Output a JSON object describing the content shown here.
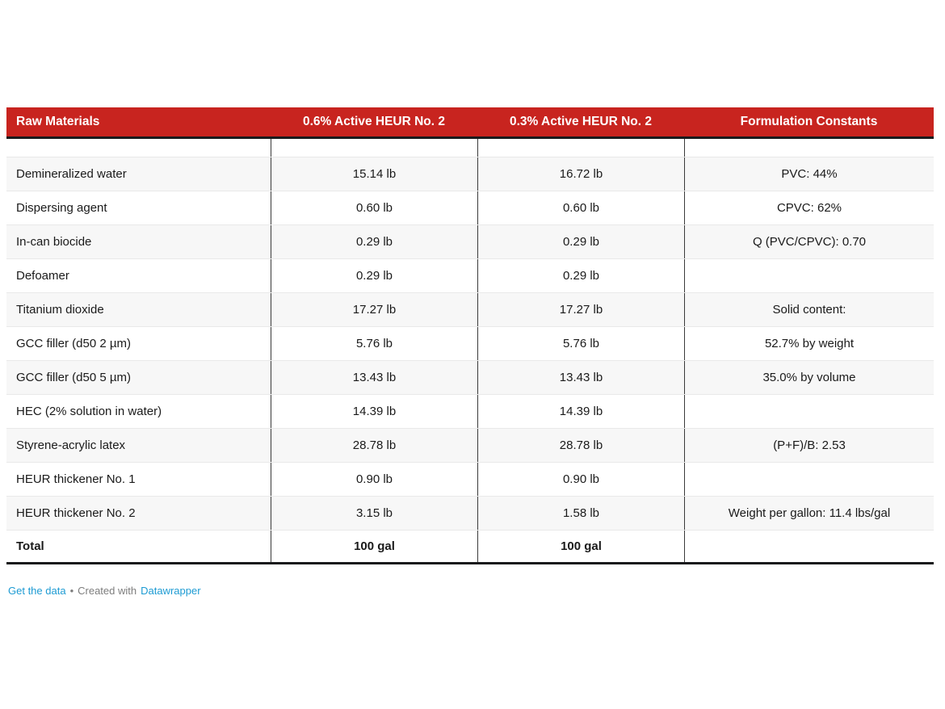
{
  "chart_data": {
    "type": "table",
    "title": "",
    "columns": [
      "Raw Materials",
      "0.6% Active HEUR No. 2",
      "0.3% Active HEUR No. 2",
      "Formulation Constants"
    ],
    "rows": [
      [
        "Demineralized water",
        "15.14 lb",
        "16.72 lb",
        "PVC: 44%"
      ],
      [
        "Dispersing agent",
        "0.60 lb",
        "0.60 lb",
        "CPVC: 62%"
      ],
      [
        "In-can biocide",
        "0.29 lb",
        "0.29 lb",
        "Q (PVC/CPVC): 0.70"
      ],
      [
        "Defoamer",
        "0.29 lb",
        "0.29 lb",
        ""
      ],
      [
        "Titanium dioxide",
        "17.27 lb",
        "17.27 lb",
        "Solid content:"
      ],
      [
        "GCC filler (d50 2 µm)",
        "5.76 lb",
        "5.76 lb",
        "52.7% by weight"
      ],
      [
        "GCC filler (d50 5 µm)",
        "13.43 lb",
        "13.43 lb",
        "35.0% by volume"
      ],
      [
        "HEC (2% solution in water)",
        "14.39 lb",
        "14.39 lb",
        ""
      ],
      [
        "Styrene-acrylic latex",
        "28.78 lb",
        "28.78 lb",
        "(P+F)/B: 2.53"
      ],
      [
        "HEUR thickener No. 1",
        "0.90 lb",
        "0.90 lb",
        ""
      ],
      [
        "HEUR thickener No. 2",
        "3.15 lb",
        "1.58 lb",
        "Weight per gallon: 11.4 lbs/gal"
      ],
      [
        "Total",
        "100 gal",
        "100 gal",
        ""
      ]
    ],
    "layout_hints": {
      "header_style": "red band, white bold text",
      "striped_rows": "odd data rows shaded",
      "column_alignment": [
        "left",
        "center",
        "center",
        "center"
      ]
    }
  },
  "footer": {
    "get_data_label": "Get the data",
    "separator": "•",
    "created_with": "Created with",
    "datawrapper_label": "Datawrapper"
  },
  "colors": {
    "header_bg": "#c8241f",
    "header_text": "#ffffff",
    "heavy_border": "#191a1c",
    "column_divider": "#3a3a3a",
    "row_divider": "#e9e9e9",
    "stripe_bg": "#f7f7f7",
    "link_blue": "#1d9bd3",
    "muted_text": "#7d7d7d"
  }
}
